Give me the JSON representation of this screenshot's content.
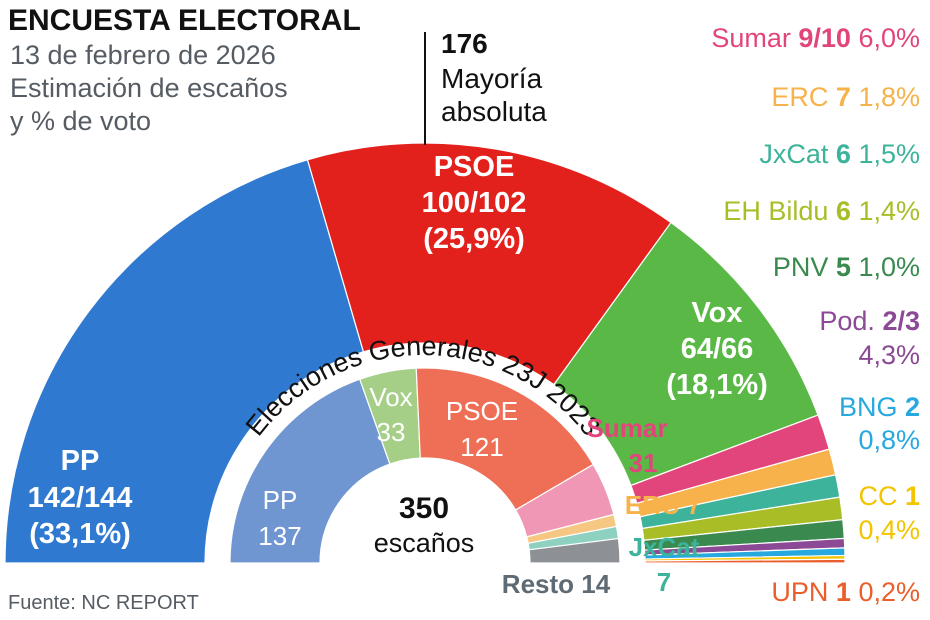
{
  "header": {
    "title": "ENCUESTA ELECTORAL",
    "subtitle_lines": [
      "13 de febrero de 2026",
      "Estimación de escaños",
      "y % de voto"
    ]
  },
  "majority": {
    "value": "176",
    "label_lines": [
      "Mayoría",
      "absoluta"
    ]
  },
  "source": "Fuente: NC REPORT",
  "center": {
    "value": "350",
    "label": "escaños"
  },
  "chart_data": [
    {
      "type": "semicircle",
      "name": "Encuesta",
      "total_seats": 350,
      "series": [
        {
          "party": "PP",
          "seats": 143,
          "seats_label": "142/144",
          "vote_label": "(33,1%)",
          "vote_pct": 33.1,
          "color": "#2f7ad0"
        },
        {
          "party": "PSOE",
          "seats": 101,
          "seats_label": "100/102",
          "vote_label": "(25,9%)",
          "vote_pct": 25.9,
          "color": "#e2201c"
        },
        {
          "party": "Vox",
          "seats": 65,
          "seats_label": "64/66",
          "vote_label": "(18,1%)",
          "vote_pct": 18.1,
          "color": "#5ab946"
        },
        {
          "party": "Sumar",
          "seats": 9.5,
          "seats_label": "9/10",
          "vote_label": "6,0%",
          "vote_pct": 6.0,
          "color": "#e2457b"
        },
        {
          "party": "ERC",
          "seats": 7,
          "seats_label": "7",
          "vote_label": "1,8%",
          "vote_pct": 1.8,
          "color": "#f7b24b"
        },
        {
          "party": "JxCat",
          "seats": 6,
          "seats_label": "6",
          "vote_label": "1,5%",
          "vote_pct": 1.5,
          "color": "#3cb39a"
        },
        {
          "party": "EH Bildu",
          "seats": 6,
          "seats_label": "6",
          "vote_label": "1,4%",
          "vote_pct": 1.4,
          "color": "#a8bd26"
        },
        {
          "party": "PNV",
          "seats": 5,
          "seats_label": "5",
          "vote_label": "1,0%",
          "vote_pct": 1.0,
          "color": "#3a8a4f"
        },
        {
          "party": "Pod.",
          "seats": 2.5,
          "seats_label": "2/3",
          "vote_label": "4,3%",
          "vote_pct": 4.3,
          "color": "#8c4a96"
        },
        {
          "party": "BNG",
          "seats": 2,
          "seats_label": "2",
          "vote_label": "0,8%",
          "vote_pct": 0.8,
          "color": "#27a9e0"
        },
        {
          "party": "CC",
          "seats": 1,
          "seats_label": "1",
          "vote_label": "0,4%",
          "vote_pct": 0.4,
          "color": "#f3c400"
        },
        {
          "party": "UPN",
          "seats": 1,
          "seats_label": "1",
          "vote_label": "0,2%",
          "vote_pct": 0.2,
          "color": "#ea5e2b"
        }
      ]
    },
    {
      "type": "semicircle",
      "name": "Elecciones Generales 23J 2023",
      "total_seats": 350,
      "series": [
        {
          "party": "PP",
          "seats": 137,
          "color": "#6f96d1"
        },
        {
          "party": "Vox",
          "seats": 33,
          "color": "#a5cf87"
        },
        {
          "party": "PSOE",
          "seats": 121,
          "color": "#ee6f56"
        },
        {
          "party": "Sumar",
          "seats": 31,
          "color": "#ef97b5"
        },
        {
          "party": "ERC",
          "seats": 7,
          "color": "#f6c783"
        },
        {
          "party": "JxCat",
          "seats": 7,
          "color": "#8fd1c1"
        },
        {
          "party": "Resto",
          "seats": 14,
          "color": "#8d9196"
        }
      ]
    }
  ],
  "colors": {
    "dark": "#111111",
    "gray_text": "#555c63",
    "majority_line": "#111111",
    "resto_label": "#5f6b74",
    "inner_sumar": "#e2457b",
    "inner_erc": "#f7b24b",
    "inner_jxcat": "#3cb39a"
  }
}
